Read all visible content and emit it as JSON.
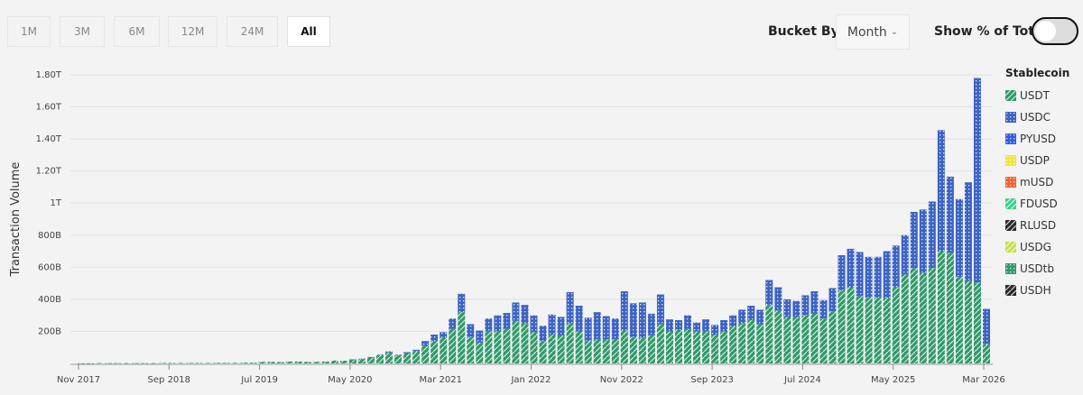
{
  "range_buttons": [
    {
      "label": "1M"
    },
    {
      "label": "3M"
    },
    {
      "label": "6M"
    },
    {
      "label": "12M"
    },
    {
      "label": "24M"
    },
    {
      "label": "All",
      "active": true
    }
  ],
  "bucket": {
    "label": "Bucket By",
    "value": "Month"
  },
  "toggle": {
    "label": "Show % of Total",
    "on": false
  },
  "legend": {
    "title": "Stablecoin",
    "items": [
      {
        "name": "USDT",
        "color": "#2f9a68",
        "pattern": "stripes"
      },
      {
        "name": "USDC",
        "color": "#3d64c4",
        "pattern": "dots"
      },
      {
        "name": "PYUSD",
        "color": "#2f5ee6",
        "pattern": "dots"
      },
      {
        "name": "USDP",
        "color": "#f2e53a",
        "pattern": "dots"
      },
      {
        "name": "mUSD",
        "color": "#f2642c",
        "pattern": "dots"
      },
      {
        "name": "FDUSD",
        "color": "#3fd08a",
        "pattern": "stripes"
      },
      {
        "name": "RLUSD",
        "color": "#2a2a2a",
        "pattern": "stripes"
      },
      {
        "name": "USDG",
        "color": "#c3df4a",
        "pattern": "stripes"
      },
      {
        "name": "USDtb",
        "color": "#2f9a68",
        "pattern": "dots"
      },
      {
        "name": "USDH",
        "color": "#2a2a2a",
        "pattern": "stripes"
      }
    ]
  },
  "chart_data": {
    "type": "bar",
    "stacked": true,
    "ylabel": "Transaction Volume",
    "y_unit": "billions USD",
    "ylim": [
      0,
      1800
    ],
    "y_ticks": [
      {
        "v": 200,
        "label": "200B"
      },
      {
        "v": 400,
        "label": "400B"
      },
      {
        "v": 600,
        "label": "600B"
      },
      {
        "v": 800,
        "label": "800B"
      },
      {
        "v": 1000,
        "label": "1T"
      },
      {
        "v": 1200,
        "label": "1.20T"
      },
      {
        "v": 1400,
        "label": "1.40T"
      },
      {
        "v": 1600,
        "label": "1.60T"
      },
      {
        "v": 1800,
        "label": "1.80T"
      }
    ],
    "x_start": "Nov 2017",
    "x_end": "Mar 2026",
    "x_ticks": [
      "Nov 2017",
      "Sep 2018",
      "Jul 2019",
      "May 2020",
      "Mar 2021",
      "Jan 2022",
      "Nov 2022",
      "Sep 2023",
      "Jul 2024",
      "May 2025",
      "Mar 2026"
    ],
    "grid": true,
    "legend_position": "right",
    "series": [
      {
        "name": "USDT",
        "values": [
          1,
          1,
          2,
          2,
          2,
          2,
          2,
          2,
          2,
          3,
          3,
          3,
          3,
          3,
          3,
          4,
          4,
          4,
          5,
          5,
          10,
          10,
          9,
          12,
          12,
          10,
          10,
          12,
          18,
          17,
          24,
          28,
          37,
          50,
          68,
          50,
          62,
          75,
          110,
          140,
          160,
          215,
          320,
          165,
          130,
          200,
          200,
          215,
          265,
          250,
          195,
          140,
          180,
          175,
          250,
          200,
          140,
          150,
          150,
          150,
          205,
          165,
          160,
          175,
          245,
          200,
          210,
          215,
          200,
          200,
          180,
          200,
          230,
          250,
          270,
          245,
          365,
          330,
          290,
          290,
          300,
          310,
          280,
          325,
          455,
          475,
          420,
          410,
          410,
          410,
          475,
          555,
          595,
          565,
          595,
          700,
          690,
          540,
          515,
          505,
          120
        ]
      },
      {
        "name": "USDC",
        "values": [
          0,
          0,
          0,
          0,
          0,
          0,
          0,
          0,
          0,
          0,
          0,
          0,
          0,
          0,
          0,
          0,
          0,
          0,
          0,
          0,
          0,
          0,
          0,
          0,
          0,
          0,
          0,
          0,
          0,
          0,
          1,
          2,
          3,
          5,
          7,
          5,
          8,
          10,
          30,
          40,
          35,
          65,
          115,
          80,
          75,
          80,
          100,
          100,
          115,
          115,
          105,
          95,
          125,
          115,
          195,
          160,
          145,
          170,
          145,
          130,
          245,
          210,
          220,
          135,
          185,
          75,
          60,
          85,
          55,
          75,
          60,
          70,
          70,
          85,
          90,
          90,
          155,
          145,
          110,
          100,
          125,
          140,
          115,
          145,
          220,
          240,
          275,
          255,
          255,
          290,
          260,
          245,
          350,
          395,
          415,
          755,
          475,
          485,
          615,
          1275,
          220
        ]
      }
    ]
  }
}
